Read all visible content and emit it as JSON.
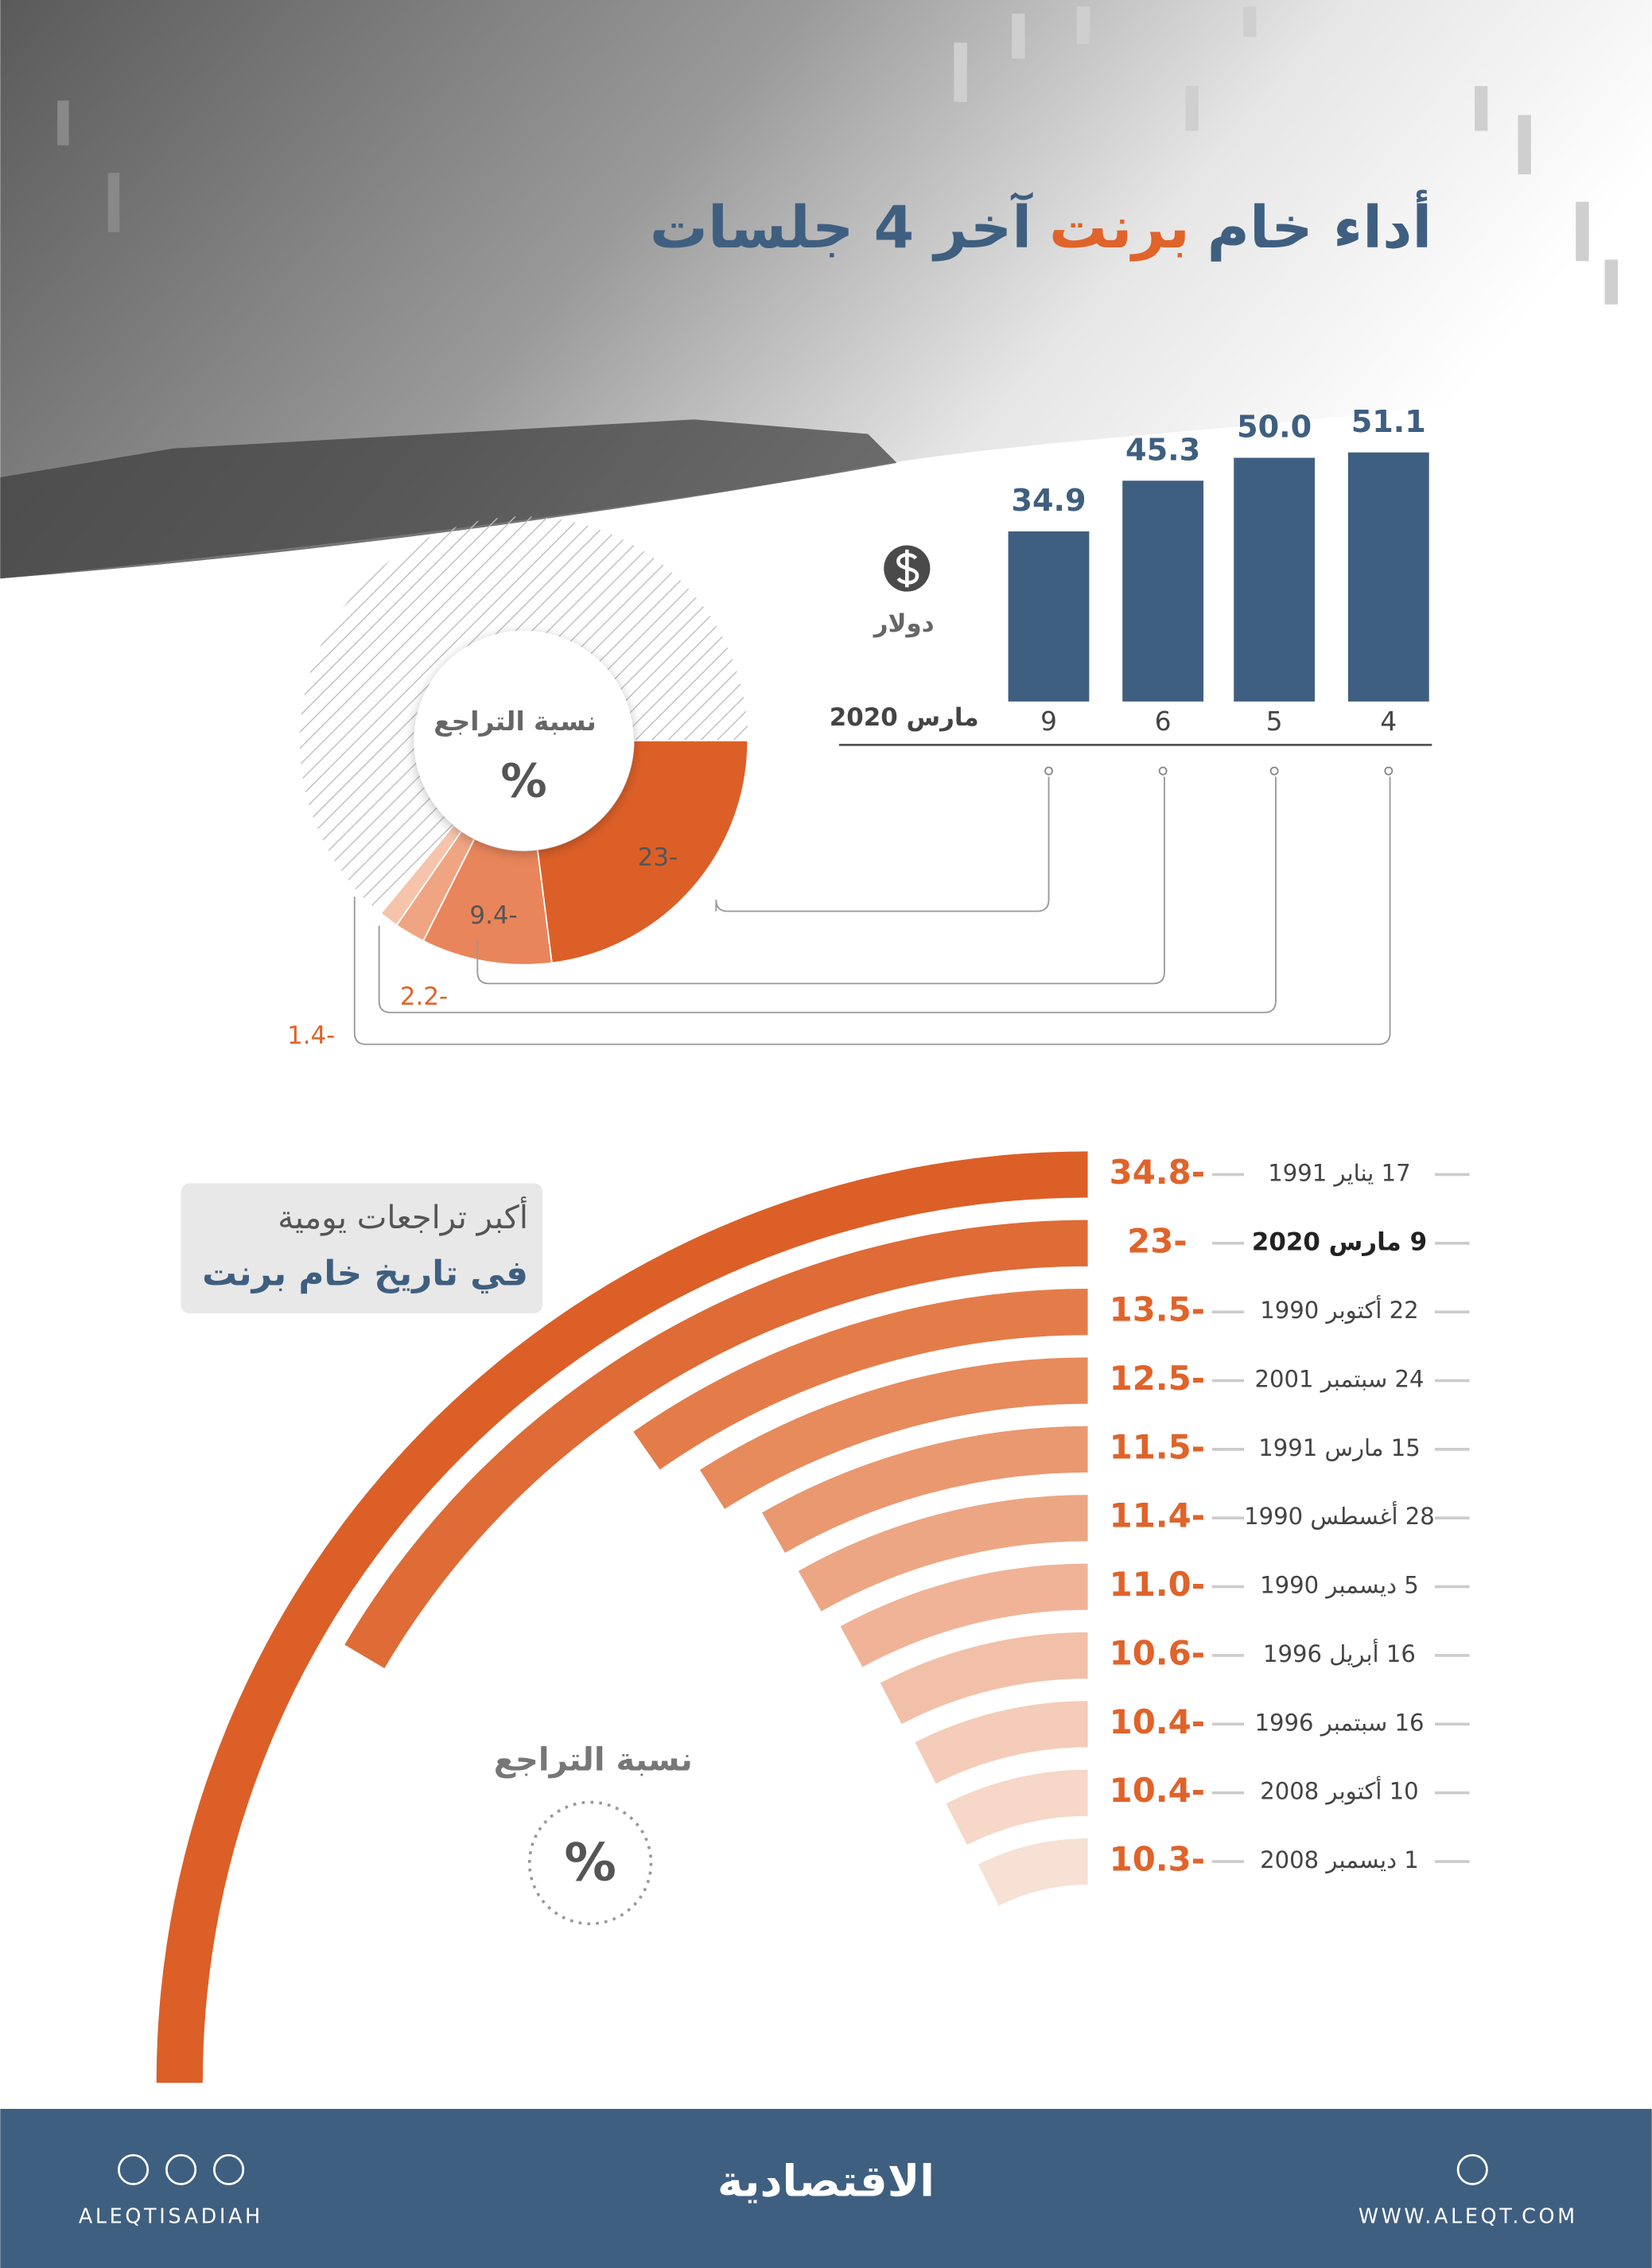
{
  "chart_data": [
    {
      "type": "bar",
      "title": [
        "أداء خام",
        "برنت",
        "آخر 4 جلسات"
      ],
      "title_colors": [
        "#3f5f80",
        "#e0632a",
        "#3f5f80"
      ],
      "categories": [
        "4",
        "5",
        "6",
        "9"
      ],
      "values": [
        51.1,
        50,
        45.3,
        34.9
      ],
      "value_labels": [
        "51.1",
        "50.0",
        "45.3",
        "34.9"
      ],
      "color": "#3f5f80",
      "unit": "دولار",
      "x_label": "مارس 2020"
    },
    {
      "type": "pie",
      "title": "نسبة التراجع",
      "unit": "%",
      "values": [
        -23,
        -9.4,
        -2.2,
        -1.4
      ],
      "value_labels": [
        "23-",
        "9.4-",
        "2.2-",
        "1.4-"
      ],
      "colors": [
        "#dc5f27",
        "#e9855a",
        "#f0a582",
        "#f5c4ab"
      ],
      "label_colors": [
        "#555555",
        "#555555",
        "#e0632a",
        "#e0632a"
      ]
    },
    {
      "type": "radial_bar",
      "title": [
        "أكبر تراجعات يومية",
        "في تاريخ خام برنت"
      ],
      "categories": [
        "17 يناير 1991",
        "9 مارس 2020",
        "22 أكتوبر 1990",
        "24 سبتمبر 2001",
        "15 مارس 1991",
        "28 أغسطس 1990",
        "5 ديسمبر 1990",
        "16 أبريل 1996",
        "16 سبتمبر 1996",
        "10 أكتوبر 2008",
        "1 ديسمبر 2008"
      ],
      "values": [
        -34.8,
        -23,
        -13.5,
        -12.5,
        -11.5,
        -11.4,
        -11.0,
        -10.6,
        -10.4,
        -10.4,
        -10.3
      ],
      "value_labels": [
        "34.8-",
        "23-",
        "13.5-",
        "12.5-",
        "11.5-",
        "11.4-",
        "11.0-",
        "10.6-",
        "10.4-",
        "10.4-",
        "10.3-"
      ],
      "colors": [
        "#dc5f27",
        "#df6b36",
        "#e47c4a",
        "#e78a5c",
        "#ea9870",
        "#eda683",
        "#f0b397",
        "#f2c0a8",
        "#f4ccb9",
        "#f6d7c8",
        "#f7e0d4"
      ],
      "highlight_index": 1,
      "legend_title": "نسبة التراجع",
      "unit": "%"
    }
  ],
  "footer": {
    "handle": "ALEQTISADIAH",
    "logo": "الاقتصادية",
    "website": "WWW.ALEQT.COM"
  }
}
